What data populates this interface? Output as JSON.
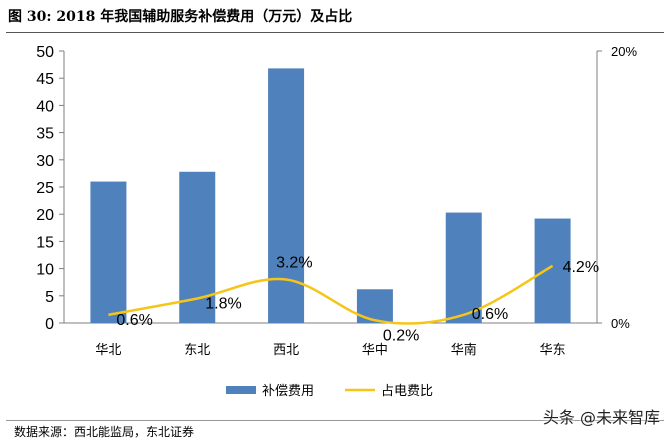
{
  "title": "图 30:  2018 年我国辅助服务补偿费用（万元）及占比",
  "source": "数据来源：西北能监局，东北证券",
  "watermark": "头条 @未来智库",
  "colors": {
    "bar": "#4f81bd",
    "line": "#f5c518",
    "axis": "#7f7f7f"
  },
  "chart_data": {
    "type": "bar",
    "categories": [
      "华北",
      "东北",
      "西北",
      "华中",
      "华南",
      "华东"
    ],
    "series": [
      {
        "name": "补偿费用",
        "type": "bar",
        "axis": "left",
        "values": [
          26,
          27.8,
          46.8,
          6.2,
          20.3,
          19.2
        ]
      },
      {
        "name": "占电费比",
        "type": "line",
        "axis": "right",
        "values": [
          0.6,
          1.8,
          3.2,
          0.2,
          0.6,
          4.2
        ],
        "labels": [
          "0.6%",
          "1.8%",
          "3.2%",
          "0.2%",
          "0.6%",
          "4.2%"
        ]
      }
    ],
    "y_left": {
      "min": 0,
      "max": 50,
      "ticks": [
        "0",
        "5",
        "10",
        "15",
        "20",
        "25",
        "30",
        "35",
        "40",
        "45",
        "50"
      ]
    },
    "y_right": {
      "min": 0,
      "max": 20,
      "ticks": [
        "0%",
        "20%"
      ]
    },
    "legend_position": "bottom",
    "grid": false
  }
}
